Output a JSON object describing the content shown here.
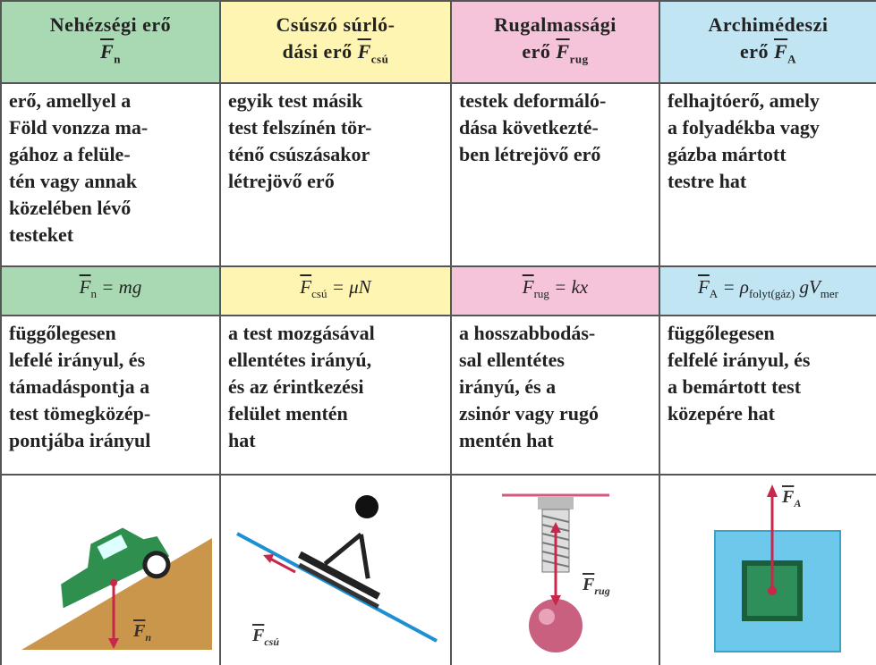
{
  "columns": [
    {
      "header": {
        "lines": [
          "Nehézségi erő"
        ],
        "symbol": "F",
        "subscript": "n"
      },
      "description": [
        "erő, amellyel a",
        "Föld vonzza ma-",
        "gához a felüle-",
        "tén vagy annak",
        "közelében lévő",
        "testeket"
      ],
      "formula": [
        {
          "text": "F",
          "sub": "n"
        },
        {
          "text": "= mg"
        }
      ],
      "explanation": [
        "függőlegesen",
        "lefelé irányul, és",
        "támadáspontja a",
        "test tömegközép-",
        "pontjába irányul"
      ],
      "figure_label": {
        "symbol": "F",
        "subscript": "n"
      }
    },
    {
      "header": {
        "lines": [
          "Csúszó súrló-",
          "dási erő"
        ],
        "symbol": "F",
        "subscript": "csú"
      },
      "description": [
        "egyik test másik",
        "test felszínén tör-",
        "ténő csúszásakor",
        "létrejövő erő"
      ],
      "formula": [
        {
          "text": "F",
          "sub": "csú"
        },
        {
          "text": "= μN"
        }
      ],
      "explanation": [
        "a test mozgásával",
        "ellentétes irányú,",
        "és az érintkezési",
        "felület mentén",
        "hat"
      ],
      "figure_label": {
        "symbol": "F",
        "subscript": "csú"
      }
    },
    {
      "header": {
        "lines": [
          "Rugalmassági",
          "erő"
        ],
        "symbol": "F",
        "subscript": "rug"
      },
      "description": [
        "testek deformáló-",
        "dása következté-",
        "ben létrejövő erő"
      ],
      "formula": [
        {
          "text": "F",
          "sub": "rug"
        },
        {
          "text": "= kx"
        }
      ],
      "explanation": [
        "a hosszabbodás-",
        "sal ellentétes",
        "irányú, és a",
        "zsinór vagy rugó",
        "mentén hat"
      ],
      "figure_label": {
        "symbol": "F",
        "subscript": "rug"
      }
    },
    {
      "header": {
        "lines": [
          "Archimédeszi",
          "erő"
        ],
        "symbol": "F",
        "subscript": "A"
      },
      "description": [
        "felhajtóerő, amely",
        "a folyadékba vagy",
        "gázba mártott",
        "testre hat"
      ],
      "formula": [
        {
          "text": "F",
          "sub": "A"
        },
        {
          "text": "= ρ",
          "sub": "folyt(gáz)"
        },
        {
          "text": "gV",
          "sub": "mer"
        }
      ],
      "explanation": [
        "függőlegesen",
        "felfelé irányul, és",
        "a bemártott test",
        "közepére hat"
      ],
      "figure_label": {
        "symbol": "F",
        "subscript": "A"
      }
    }
  ]
}
